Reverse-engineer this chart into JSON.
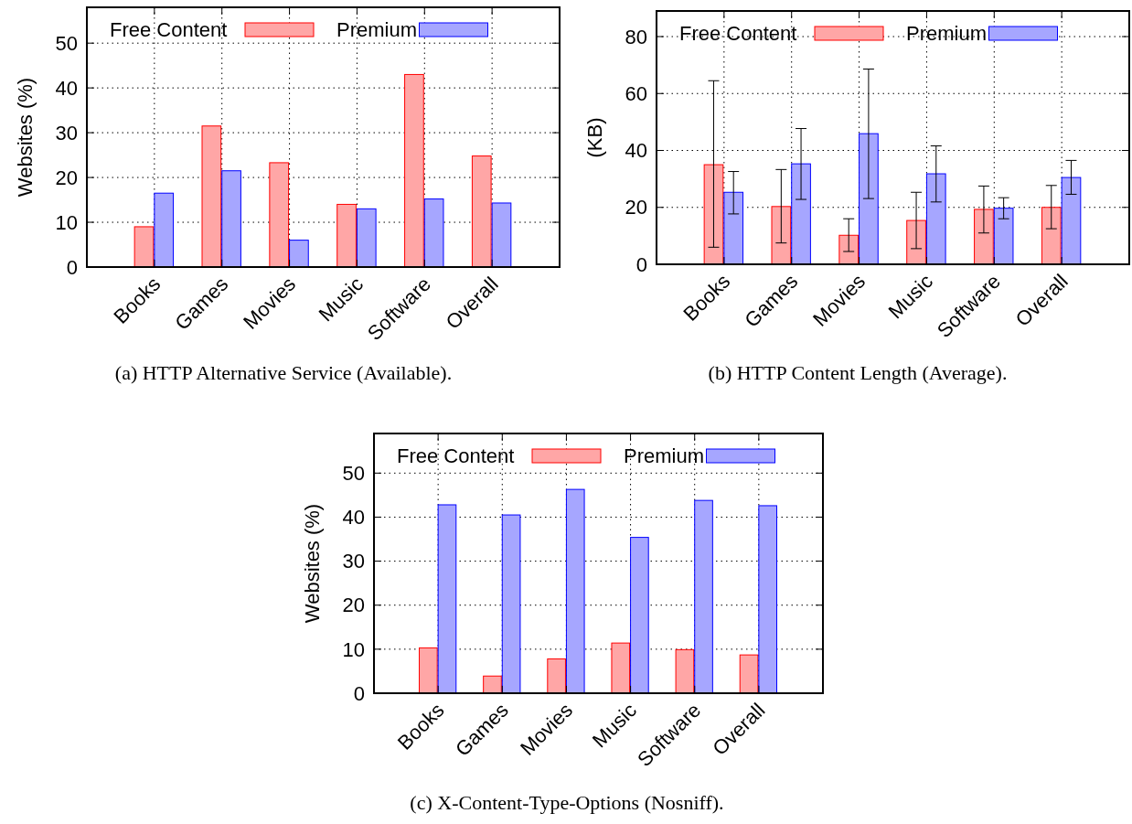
{
  "chart_data": [
    {
      "type": "bar",
      "annotations": [
        "(a) HTTP Alternative Service (Available)."
      ],
      "ylabel": "Websites (%)",
      "categories": [
        "Books",
        "Games",
        "Movies",
        "Music",
        "Software",
        "Overall"
      ],
      "ylim": [
        0,
        58
      ],
      "yticks": [
        0,
        10,
        20,
        30,
        40,
        50
      ],
      "grid": true,
      "legend": "top",
      "series": [
        {
          "name": "Free Content",
          "color": "#ffa6a6",
          "values": [
            9,
            31.5,
            23.3,
            14,
            43,
            24.8
          ]
        },
        {
          "name": "Premium",
          "color": "#a6a6ff",
          "values": [
            16.5,
            21.5,
            6,
            13,
            15.2,
            14.3
          ]
        }
      ]
    },
    {
      "type": "bar",
      "annotations": [
        "(b) HTTP Content Length (Average)."
      ],
      "ylabel": "(KB)",
      "categories": [
        "Books",
        "Games",
        "Movies",
        "Music",
        "Software",
        "Overall"
      ],
      "ylim": [
        0,
        89
      ],
      "yticks": [
        0,
        20,
        40,
        60,
        80
      ],
      "grid": true,
      "legend": "top",
      "series": [
        {
          "name": "Free Content",
          "color": "#ffa6a6",
          "values": [
            35,
            20.3,
            10.2,
            15.4,
            19.3,
            20
          ],
          "errors": [
            [
              6,
              64.5
            ],
            [
              7.5,
              33.3
            ],
            [
              4.5,
              16
            ],
            [
              5.5,
              25.3
            ],
            [
              11,
              27.5
            ],
            [
              12.5,
              27.7
            ]
          ]
        },
        {
          "name": "Premium",
          "color": "#a6a6ff",
          "values": [
            25.3,
            35.3,
            45.9,
            31.8,
            19.7,
            30.5
          ],
          "errors": [
            [
              17.7,
              32.6
            ],
            [
              22.8,
              47.7
            ],
            [
              23.1,
              68.6
            ],
            [
              21.9,
              41.6
            ],
            [
              16,
              23.4
            ],
            [
              24.6,
              36.5
            ]
          ]
        }
      ]
    },
    {
      "type": "bar",
      "annotations": [
        "(c) X-Content-Type-Options (Nosniff)."
      ],
      "ylabel": "Websites (%)",
      "categories": [
        "Books",
        "Games",
        "Movies",
        "Music",
        "Software",
        "Overall"
      ],
      "ylim": [
        0,
        59
      ],
      "yticks": [
        0,
        10,
        20,
        30,
        40,
        50
      ],
      "grid": true,
      "legend": "top",
      "series": [
        {
          "name": "Free Content",
          "color": "#ffa6a6",
          "values": [
            10.3,
            3.9,
            7.8,
            11.4,
            9.9,
            8.7
          ]
        },
        {
          "name": "Premium",
          "color": "#a6a6ff",
          "values": [
            42.8,
            40.5,
            46.3,
            35.4,
            43.8,
            42.6
          ]
        }
      ]
    }
  ]
}
